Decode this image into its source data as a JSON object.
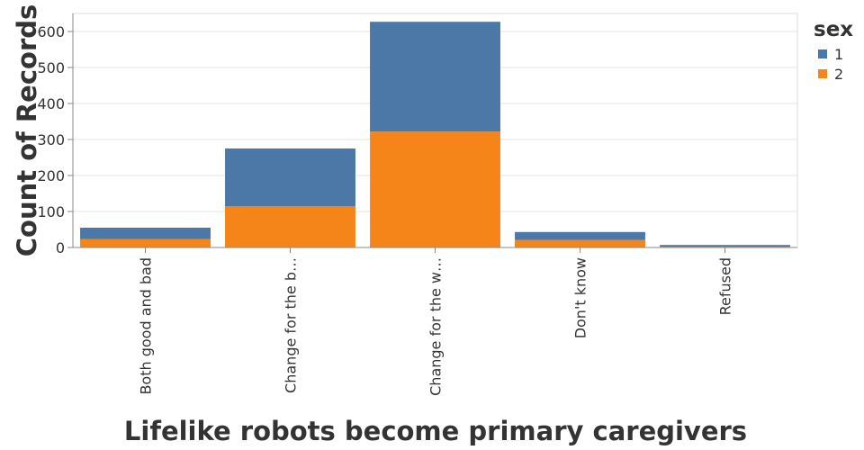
{
  "chart_data": {
    "type": "bar",
    "stacked": true,
    "categories": [
      "Both good and bad",
      "Change for the b…",
      "Change for the w…",
      "Don't know",
      "Refused"
    ],
    "series": [
      {
        "name": "1",
        "color": "#4c78a8",
        "values": [
          32,
          160,
          305,
          22,
          5
        ]
      },
      {
        "name": "2",
        "color": "#f58518",
        "values": [
          23,
          115,
          322,
          21,
          2
        ]
      }
    ],
    "xlabel": "Lifelike robots become primary caregivers",
    "ylabel": "Count of Records",
    "ylim": [
      0,
      650
    ],
    "yticks": [
      0,
      100,
      200,
      300,
      400,
      500,
      600
    ],
    "grid": true,
    "legend": {
      "title": "sex",
      "position": "right"
    }
  }
}
